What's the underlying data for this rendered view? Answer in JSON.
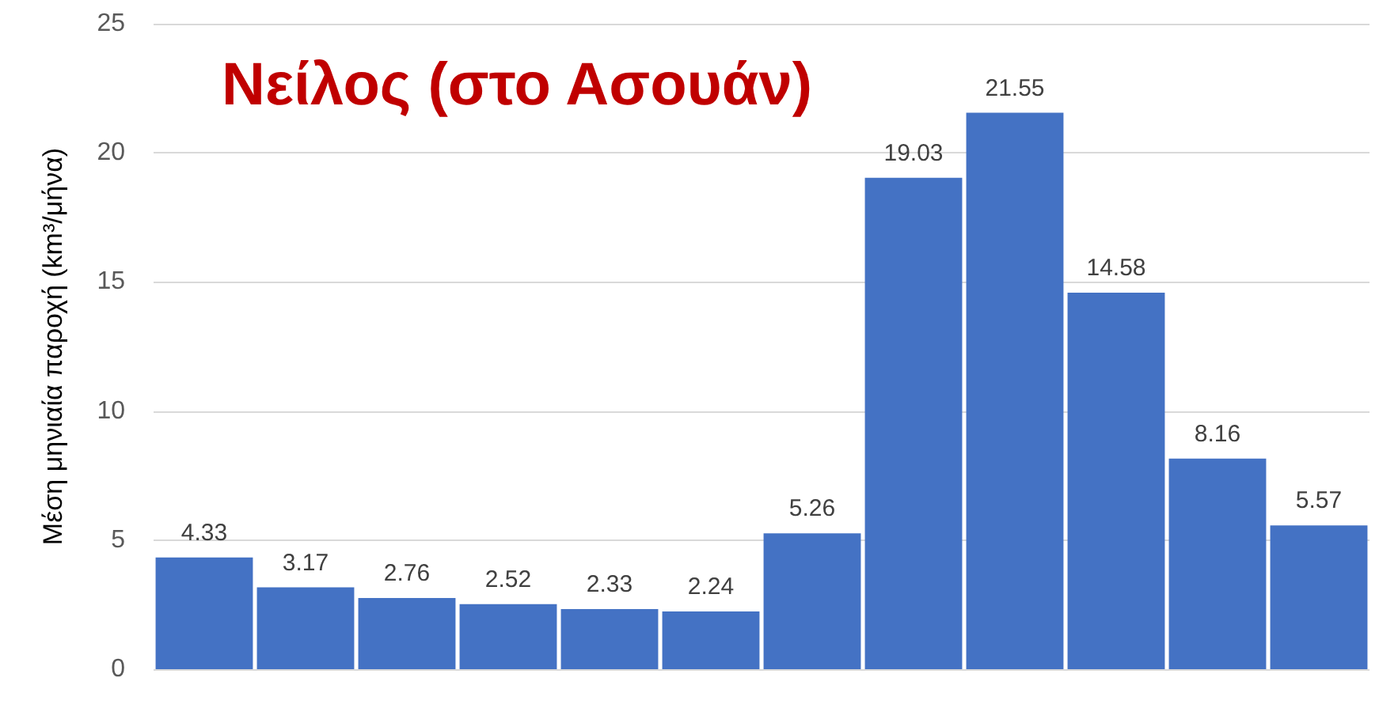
{
  "chart_data": {
    "type": "bar",
    "title": "Νείλος (στο Ασουάν)",
    "ylabel": "Μέση μηνιαία παροχή (km³/μήνα)",
    "categories": [
      null,
      null,
      null,
      null,
      null,
      null,
      null,
      null,
      null,
      null,
      null,
      null
    ],
    "values": [
      4.33,
      3.17,
      2.76,
      2.52,
      2.33,
      2.24,
      5.26,
      19.03,
      21.55,
      14.58,
      8.16,
      5.57
    ],
    "color": "#4472c4",
    "ylim": [
      0,
      25
    ],
    "yticks": [
      0,
      5,
      10,
      15,
      20,
      25
    ],
    "grid": "y",
    "data_labels": true
  }
}
